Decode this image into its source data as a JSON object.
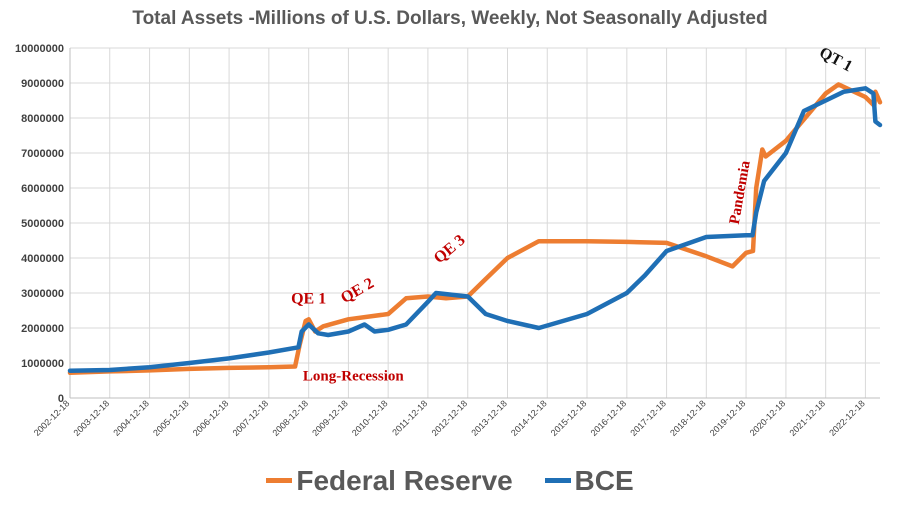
{
  "chart_data": {
    "type": "line",
    "title": "Total Assets -Millions of U.S. Dollars, Weekly, Not Seasonally Adjusted",
    "ylim": [
      0,
      10000000
    ],
    "yticks": [
      "0",
      "1000000",
      "2000000",
      "3000000",
      "4000000",
      "5000000",
      "6000000",
      "7000000",
      "8000000",
      "9000000",
      "10000000"
    ],
    "xticks": [
      "2002-12-18",
      "2003-12-18",
      "2004-12-18",
      "2005-12-18",
      "2006-12-18",
      "2007-12-18",
      "2008-12-18",
      "2009-12-18",
      "2010-12-18",
      "2011-12-18",
      "2012-12-18",
      "2013-12-18",
      "2014-12-18",
      "2015-12-18",
      "2016-12-18",
      "2017-12-18",
      "2018-12-18",
      "2019-12-18",
      "2020-12-18",
      "2021-12-18",
      "2022-12-18"
    ],
    "grid": true,
    "legend_position": "bottom",
    "series": [
      {
        "name": "Federal Reserve",
        "color": "#ed7d31",
        "points": [
          [
            "2002-12-18",
            720000
          ],
          [
            "2003-12-18",
            760000
          ],
          [
            "2004-12-18",
            790000
          ],
          [
            "2005-12-18",
            830000
          ],
          [
            "2006-12-18",
            860000
          ],
          [
            "2007-12-18",
            880000
          ],
          [
            "2008-08-15",
            900000
          ],
          [
            "2008-09-25",
            1500000
          ],
          [
            "2008-11-20",
            2200000
          ],
          [
            "2008-12-18",
            2250000
          ],
          [
            "2009-02-15",
            1900000
          ],
          [
            "2009-05-01",
            2050000
          ],
          [
            "2009-12-18",
            2250000
          ],
          [
            "2010-12-18",
            2400000
          ],
          [
            "2011-06-01",
            2850000
          ],
          [
            "2011-12-18",
            2900000
          ],
          [
            "2012-06-01",
            2850000
          ],
          [
            "2012-12-18",
            2900000
          ],
          [
            "2013-06-01",
            3400000
          ],
          [
            "2013-12-18",
            4000000
          ],
          [
            "2014-10-01",
            4480000
          ],
          [
            "2015-12-18",
            4480000
          ],
          [
            "2016-12-18",
            4460000
          ],
          [
            "2017-12-18",
            4430000
          ],
          [
            "2018-12-18",
            4050000
          ],
          [
            "2019-08-15",
            3760000
          ],
          [
            "2019-12-18",
            4150000
          ],
          [
            "2020-02-20",
            4200000
          ],
          [
            "2020-03-20",
            6000000
          ],
          [
            "2020-05-15",
            7100000
          ],
          [
            "2020-06-15",
            6900000
          ],
          [
            "2020-12-18",
            7350000
          ],
          [
            "2021-12-18",
            8700000
          ],
          [
            "2022-04-15",
            8960000
          ],
          [
            "2022-12-18",
            8600000
          ],
          [
            "2023-03-10",
            8350000
          ],
          [
            "2023-03-20",
            8750000
          ],
          [
            "2023-05-01",
            8450000
          ]
        ]
      },
      {
        "name": "BCE",
        "color": "#1f6fb5",
        "points": [
          [
            "2002-12-18",
            780000
          ],
          [
            "2003-12-18",
            800000
          ],
          [
            "2004-12-18",
            880000
          ],
          [
            "2005-12-18",
            1000000
          ],
          [
            "2006-12-18",
            1130000
          ],
          [
            "2007-12-18",
            1300000
          ],
          [
            "2008-09-15",
            1450000
          ],
          [
            "2008-10-15",
            1900000
          ],
          [
            "2008-12-18",
            2100000
          ],
          [
            "2009-03-15",
            1850000
          ],
          [
            "2009-06-15",
            1800000
          ],
          [
            "2009-12-18",
            1900000
          ],
          [
            "2010-05-15",
            2100000
          ],
          [
            "2010-08-15",
            1900000
          ],
          [
            "2010-12-18",
            1950000
          ],
          [
            "2011-06-01",
            2100000
          ],
          [
            "2011-12-18",
            2750000
          ],
          [
            "2012-03-01",
            3000000
          ],
          [
            "2012-12-18",
            2900000
          ],
          [
            "2013-06-01",
            2400000
          ],
          [
            "2013-12-18",
            2200000
          ],
          [
            "2014-10-01",
            2000000
          ],
          [
            "2015-12-18",
            2400000
          ],
          [
            "2016-12-18",
            3000000
          ],
          [
            "2017-06-01",
            3500000
          ],
          [
            "2017-12-18",
            4200000
          ],
          [
            "2018-12-18",
            4600000
          ],
          [
            "2019-12-18",
            4650000
          ],
          [
            "2020-02-15",
            4650000
          ],
          [
            "2020-03-20",
            5300000
          ],
          [
            "2020-06-01",
            6200000
          ],
          [
            "2020-12-18",
            7000000
          ],
          [
            "2021-06-01",
            8200000
          ],
          [
            "2021-12-18",
            8500000
          ],
          [
            "2022-06-01",
            8750000
          ],
          [
            "2022-12-18",
            8850000
          ],
          [
            "2023-03-01",
            8700000
          ],
          [
            "2023-03-20",
            7900000
          ],
          [
            "2023-05-01",
            7800000
          ]
        ]
      }
    ],
    "annotations": [
      {
        "text": "QE 1",
        "date": "2008-12-18",
        "value": 2700000,
        "rotate": 0,
        "color": "#c00000"
      },
      {
        "text": "QE 2",
        "date": "2010-04-01",
        "value": 2950000,
        "rotate": -30,
        "color": "#c00000"
      },
      {
        "text": "QE 3",
        "date": "2012-08-01",
        "value": 4150000,
        "rotate": -40,
        "color": "#c00000"
      },
      {
        "text": "Pandemia",
        "date": "2019-12-01",
        "value": 5850000,
        "rotate": -80,
        "color": "#c00000"
      },
      {
        "text": "Long-Recession",
        "date": "2010-02-01",
        "value": 500000,
        "rotate": 0,
        "color": "#c00000"
      },
      {
        "text": "QT 1",
        "date": "2022-03-01",
        "value": 9550000,
        "rotate": 28,
        "color": "#111111"
      }
    ]
  }
}
